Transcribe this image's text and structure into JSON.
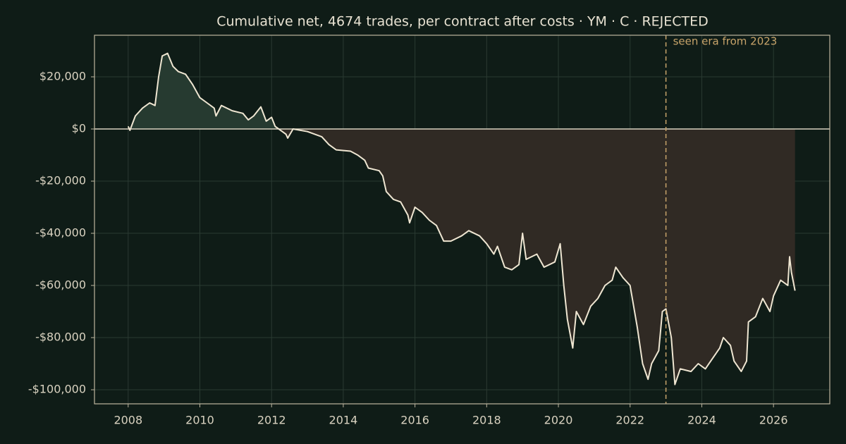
{
  "chart_data": {
    "type": "line",
    "title": "Cumulative net, 4674 trades, per contract after costs  ·  YM · C · REJECTED",
    "x": [
      2008.0,
      2008.05,
      2008.2,
      2008.4,
      2008.6,
      2008.75,
      2008.85,
      2008.95,
      2009.1,
      2009.25,
      2009.4,
      2009.6,
      2009.8,
      2010.0,
      2010.2,
      2010.4,
      2010.45,
      2010.6,
      2010.9,
      2011.2,
      2011.35,
      2011.5,
      2011.7,
      2011.85,
      2012.0,
      2012.1,
      2012.4,
      2012.45,
      2012.6,
      2013.0,
      2013.4,
      2013.6,
      2013.8,
      2014.2,
      2014.4,
      2014.6,
      2014.7,
      2015.0,
      2015.1,
      2015.2,
      2015.4,
      2015.6,
      2015.8,
      2015.85,
      2016.0,
      2016.2,
      2016.4,
      2016.6,
      2016.8,
      2017.0,
      2017.3,
      2017.5,
      2017.8,
      2018.0,
      2018.2,
      2018.3,
      2018.5,
      2018.7,
      2018.9,
      2019.0,
      2019.1,
      2019.4,
      2019.6,
      2019.9,
      2020.05,
      2020.15,
      2020.25,
      2020.4,
      2020.5,
      2020.7,
      2020.9,
      2021.1,
      2021.3,
      2021.5,
      2021.6,
      2021.8,
      2022.0,
      2022.2,
      2022.35,
      2022.5,
      2022.6,
      2022.8,
      2022.9,
      2023.0,
      2023.15,
      2023.25,
      2023.4,
      2023.7,
      2023.9,
      2024.1,
      2024.3,
      2024.5,
      2024.6,
      2024.8,
      2024.9,
      2025.1,
      2025.25,
      2025.3,
      2025.5,
      2025.7,
      2025.9,
      2026.0,
      2026.2,
      2026.4,
      2026.45,
      2026.5,
      2026.6
    ],
    "values": [
      1000,
      -500,
      5000,
      8000,
      10000,
      9000,
      20000,
      28000,
      29000,
      24000,
      22000,
      21000,
      17000,
      12000,
      10000,
      8000,
      5000,
      9000,
      7000,
      6000,
      3500,
      5000,
      8500,
      3000,
      4500,
      1000,
      -2000,
      -3500,
      0,
      -1000,
      -3000,
      -6000,
      -8000,
      -8500,
      -10000,
      -12000,
      -15000,
      -16000,
      -18000,
      -24000,
      -27000,
      -28000,
      -33000,
      -36000,
      -30000,
      -32000,
      -35000,
      -37000,
      -43000,
      -43000,
      -41000,
      -39000,
      -41000,
      -44000,
      -48000,
      -45000,
      -53000,
      -54000,
      -52000,
      -40000,
      -50000,
      -48000,
      -53000,
      -51000,
      -44000,
      -60000,
      -73000,
      -84000,
      -70000,
      -75000,
      -68000,
      -65000,
      -60000,
      -58000,
      -53000,
      -57000,
      -60000,
      -76000,
      -90000,
      -96000,
      -90000,
      -85000,
      -70000,
      -69000,
      -80000,
      -98000,
      -92000,
      -93000,
      -90000,
      -92000,
      -88000,
      -84000,
      -80000,
      -83000,
      -89000,
      -93000,
      -89000,
      -74000,
      -72000,
      -65000,
      -70000,
      -64000,
      -58000,
      -60000,
      -49000,
      -55000,
      -62000
    ],
    "line_color": "#efe6d2",
    "fill_above": "#263a30",
    "fill_below": "#302a24",
    "baseline": 0,
    "marker": {
      "x": 2023,
      "label": "seen era from 2023",
      "color": "#c8a46a"
    },
    "xlim": [
      2007.06,
      2027.57
    ],
    "xticks": [
      2008,
      2010,
      2012,
      2014,
      2016,
      2018,
      2020,
      2022,
      2024,
      2026
    ],
    "ylim": [
      -105400,
      35950
    ],
    "yticks": [
      {
        "value": 20000,
        "label": "$20,000"
      },
      {
        "value": 0,
        "label": "$0"
      },
      {
        "value": -20000,
        "label": "-$20,000"
      },
      {
        "value": -40000,
        "label": "-$40,000"
      },
      {
        "value": -60000,
        "label": "-$60,000"
      },
      {
        "value": -80000,
        "label": "-$80,000"
      },
      {
        "value": -100000,
        "label": "-$100,000"
      }
    ],
    "grid": true
  }
}
